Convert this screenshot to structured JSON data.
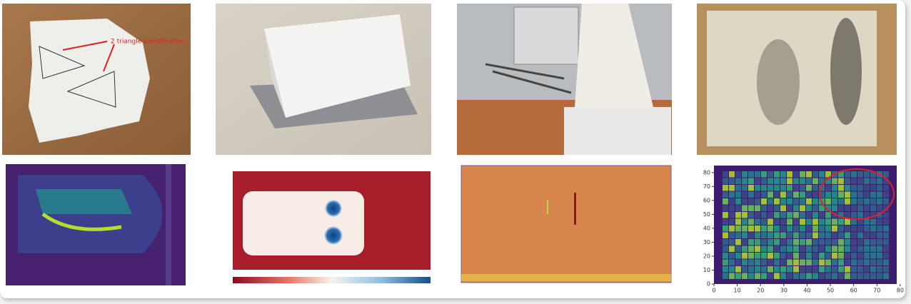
{
  "figure": {
    "annotation": "2 triangle identification",
    "heatmap": {
      "xlim": [
        0,
        78.5
      ],
      "ylim": [
        0,
        85
      ],
      "xticks": [
        0,
        10,
        20,
        30,
        40,
        50,
        60,
        70,
        80
      ],
      "yticks": [
        0,
        10,
        20,
        30,
        40,
        50,
        60,
        70,
        80
      ]
    }
  }
}
